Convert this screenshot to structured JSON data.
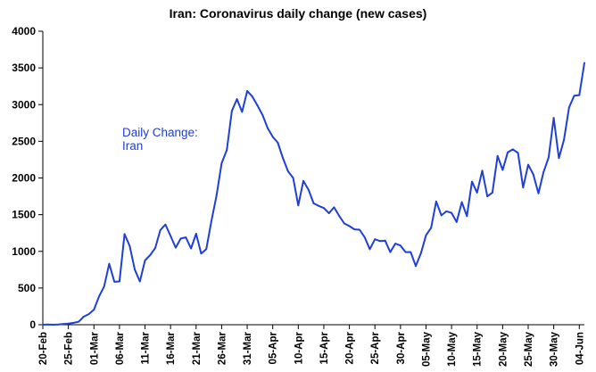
{
  "chart_data": {
    "type": "line",
    "title": "Iran: Coronavirus daily change (new cases)",
    "xlabel": "",
    "ylabel": "",
    "ylim": [
      0,
      4000
    ],
    "y_ticks": [
      "0",
      "500",
      "1000",
      "1500",
      "2000",
      "2500",
      "3000",
      "3500",
      "4000"
    ],
    "x_tick_labels": [
      "20-Feb",
      "25-Feb",
      "01-Mar",
      "06-Mar",
      "11-Mar",
      "16-Mar",
      "21-Mar",
      "26-Mar",
      "31-Mar",
      "05-Apr",
      "10-Apr",
      "15-Apr",
      "20-Apr",
      "25-Apr",
      "30-Apr",
      "05-May",
      "10-May",
      "15-May",
      "20-May",
      "25-May",
      "30-May",
      "04-Jun"
    ],
    "annotation": [
      "Daily Change:",
      "Iran"
    ],
    "colors": {
      "line": "#1f3fd6",
      "axis": "#000000",
      "annotation": "#1f3fd6"
    },
    "grid": false,
    "legend": "none",
    "series": [
      {
        "name": "Daily Change: Iran",
        "x_start": "20-Feb",
        "x_end": "04-Jun",
        "values": [
          0,
          2,
          0,
          3,
          10,
          15,
          25,
          40,
          110,
          145,
          205,
          385,
          520,
          830,
          585,
          590,
          1235,
          1075,
          750,
          590,
          875,
          950,
          1045,
          1290,
          1365,
          1210,
          1050,
          1175,
          1190,
          1040,
          1240,
          970,
          1030,
          1415,
          1760,
          2200,
          2380,
          2915,
          3075,
          2900,
          3185,
          3110,
          2990,
          2860,
          2680,
          2560,
          2480,
          2270,
          2090,
          2000,
          1625,
          1960,
          1840,
          1655,
          1620,
          1590,
          1520,
          1600,
          1485,
          1380,
          1345,
          1300,
          1295,
          1190,
          1030,
          1165,
          1140,
          1145,
          990,
          1105,
          1080,
          990,
          990,
          800,
          975,
          1220,
          1320,
          1680,
          1490,
          1545,
          1525,
          1400,
          1670,
          1480,
          1950,
          1800,
          2100,
          1750,
          1800,
          2300,
          2110,
          2350,
          2390,
          2340,
          1870,
          2180,
          2050,
          1790,
          2080,
          2280,
          2820,
          2270,
          2520,
          2960,
          3120,
          3130,
          3570
        ]
      }
    ]
  }
}
